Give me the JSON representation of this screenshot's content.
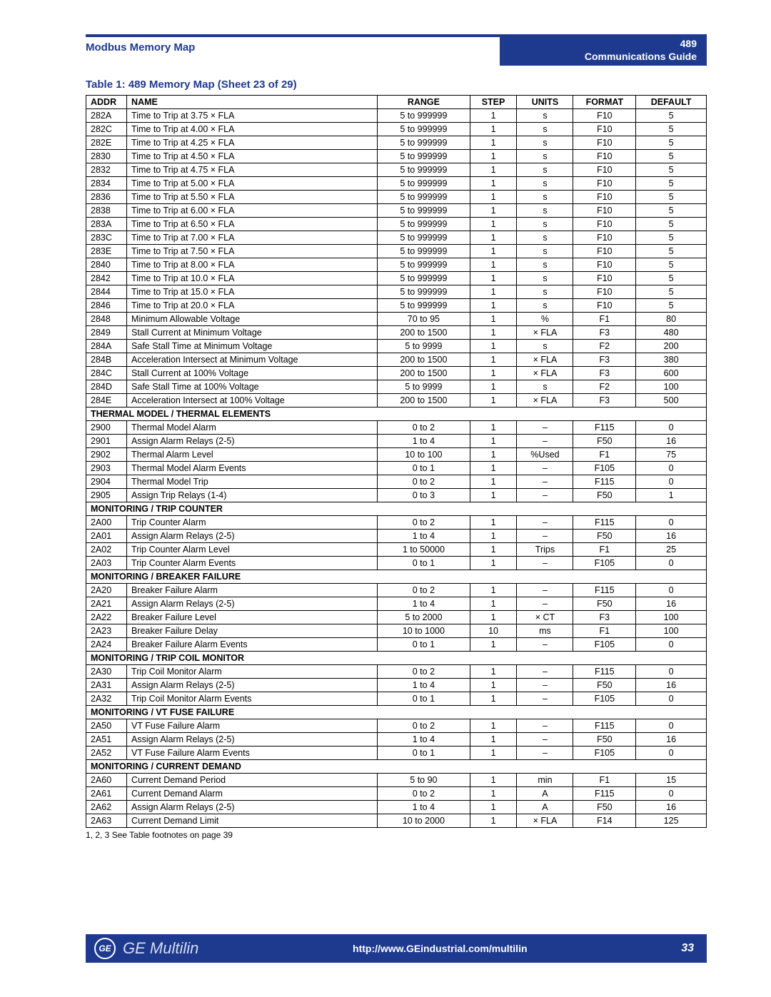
{
  "header": {
    "left": "Modbus Memory Map",
    "right_line1": "489",
    "right_line2": "Communications Guide"
  },
  "table_title": "Table 1: 489 Memory Map (Sheet 23 of 29)",
  "columns": [
    "ADDR",
    "NAME",
    "RANGE",
    "STEP",
    "UNITS",
    "FORMAT",
    "DEFAULT"
  ],
  "rows": [
    {
      "addr": "282A",
      "name": "Time to Trip at 3.75 × FLA",
      "range": "5 to 999999",
      "step": "1",
      "units": "s",
      "format": "F10",
      "default": "5"
    },
    {
      "addr": "282C",
      "name": "Time to Trip at 4.00 × FLA",
      "range": "5 to 999999",
      "step": "1",
      "units": "s",
      "format": "F10",
      "default": "5"
    },
    {
      "addr": "282E",
      "name": "Time to Trip at 4.25 × FLA",
      "range": "5 to 999999",
      "step": "1",
      "units": "s",
      "format": "F10",
      "default": "5"
    },
    {
      "addr": "2830",
      "name": "Time to Trip at 4.50 × FLA",
      "range": "5 to 999999",
      "step": "1",
      "units": "s",
      "format": "F10",
      "default": "5"
    },
    {
      "addr": "2832",
      "name": "Time to Trip at 4.75 × FLA",
      "range": "5 to 999999",
      "step": "1",
      "units": "s",
      "format": "F10",
      "default": "5"
    },
    {
      "addr": "2834",
      "name": "Time to Trip at 5.00 × FLA",
      "range": "5 to 999999",
      "step": "1",
      "units": "s",
      "format": "F10",
      "default": "5"
    },
    {
      "addr": "2836",
      "name": "Time to Trip at 5.50 × FLA",
      "range": "5 to 999999",
      "step": "1",
      "units": "s",
      "format": "F10",
      "default": "5"
    },
    {
      "addr": "2838",
      "name": "Time to Trip at 6.00 × FLA",
      "range": "5 to 999999",
      "step": "1",
      "units": "s",
      "format": "F10",
      "default": "5"
    },
    {
      "addr": "283A",
      "name": "Time to Trip at 6.50 × FLA",
      "range": "5 to 999999",
      "step": "1",
      "units": "s",
      "format": "F10",
      "default": "5"
    },
    {
      "addr": "283C",
      "name": "Time to Trip at 7.00 × FLA",
      "range": "5 to 999999",
      "step": "1",
      "units": "s",
      "format": "F10",
      "default": "5"
    },
    {
      "addr": "283E",
      "name": "Time to Trip at 7.50 × FLA",
      "range": "5 to 999999",
      "step": "1",
      "units": "s",
      "format": "F10",
      "default": "5"
    },
    {
      "addr": "2840",
      "name": "Time to Trip at 8.00 × FLA",
      "range": "5 to 999999",
      "step": "1",
      "units": "s",
      "format": "F10",
      "default": "5"
    },
    {
      "addr": "2842",
      "name": "Time to Trip at 10.0 × FLA",
      "range": "5 to 999999",
      "step": "1",
      "units": "s",
      "format": "F10",
      "default": "5"
    },
    {
      "addr": "2844",
      "name": "Time to Trip at 15.0 × FLA",
      "range": "5 to 999999",
      "step": "1",
      "units": "s",
      "format": "F10",
      "default": "5"
    },
    {
      "addr": "2846",
      "name": "Time to Trip at 20.0 × FLA",
      "range": "5 to 999999",
      "step": "1",
      "units": "s",
      "format": "F10",
      "default": "5"
    },
    {
      "addr": "2848",
      "name": "Minimum Allowable Voltage",
      "range": "70 to 95",
      "step": "1",
      "units": "%",
      "format": "F1",
      "default": "80"
    },
    {
      "addr": "2849",
      "name": "Stall Current at Minimum Voltage",
      "range": "200 to 1500",
      "step": "1",
      "units": "× FLA",
      "format": "F3",
      "default": "480"
    },
    {
      "addr": "284A",
      "name": "Safe Stall Time at Minimum Voltage",
      "range": "5 to 9999",
      "step": "1",
      "units": "s",
      "format": "F2",
      "default": "200"
    },
    {
      "addr": "284B",
      "name": "Acceleration Intersect at Minimum Voltage",
      "range": "200 to 1500",
      "step": "1",
      "units": "× FLA",
      "format": "F3",
      "default": "380"
    },
    {
      "addr": "284C",
      "name": "Stall Current at 100% Voltage",
      "range": "200 to 1500",
      "step": "1",
      "units": "× FLA",
      "format": "F3",
      "default": "600"
    },
    {
      "addr": "284D",
      "name": "Safe Stall Time at 100% Voltage",
      "range": "5 to 9999",
      "step": "1",
      "units": "s",
      "format": "F2",
      "default": "100"
    },
    {
      "addr": "284E",
      "name": "Acceleration Intersect at 100% Voltage",
      "range": "200 to 1500",
      "step": "1",
      "units": "× FLA",
      "format": "F3",
      "default": "500"
    },
    {
      "section": "THERMAL MODEL / THERMAL ELEMENTS"
    },
    {
      "addr": "2900",
      "name": "Thermal Model Alarm",
      "range": "0 to 2",
      "step": "1",
      "units": "–",
      "format": "F115",
      "default": "0"
    },
    {
      "addr": "2901",
      "name": "Assign Alarm Relays (2-5)",
      "range": "1 to 4",
      "step": "1",
      "units": "–",
      "format": "F50",
      "default": "16"
    },
    {
      "addr": "2902",
      "name": "Thermal Alarm Level",
      "range": "10 to 100",
      "step": "1",
      "units": "%Used",
      "format": "F1",
      "default": "75"
    },
    {
      "addr": "2903",
      "name": "Thermal Model Alarm Events",
      "range": "0 to 1",
      "step": "1",
      "units": "–",
      "format": "F105",
      "default": "0"
    },
    {
      "addr": "2904",
      "name": "Thermal Model Trip",
      "range": "0 to 2",
      "step": "1",
      "units": "–",
      "format": "F115",
      "default": "0"
    },
    {
      "addr": "2905",
      "name": "Assign Trip Relays (1-4)",
      "range": "0 to 3",
      "step": "1",
      "units": "–",
      "format": "F50",
      "default": "1"
    },
    {
      "section": "MONITORING / TRIP COUNTER"
    },
    {
      "addr": "2A00",
      "name": "Trip Counter Alarm",
      "range": "0 to 2",
      "step": "1",
      "units": "–",
      "format": "F115",
      "default": "0"
    },
    {
      "addr": "2A01",
      "name": "Assign Alarm Relays (2-5)",
      "range": "1 to 4",
      "step": "1",
      "units": "–",
      "format": "F50",
      "default": "16"
    },
    {
      "addr": "2A02",
      "name": "Trip Counter Alarm Level",
      "range": "1 to 50000",
      "step": "1",
      "units": "Trips",
      "format": "F1",
      "default": "25"
    },
    {
      "addr": "2A03",
      "name": "Trip Counter Alarm Events",
      "range": "0 to 1",
      "step": "1",
      "units": "–",
      "format": "F105",
      "default": "0"
    },
    {
      "section": "MONITORING / BREAKER FAILURE"
    },
    {
      "addr": "2A20",
      "name": "Breaker Failure Alarm",
      "range": "0 to 2",
      "step": "1",
      "units": "–",
      "format": "F115",
      "default": "0"
    },
    {
      "addr": "2A21",
      "name": "Assign Alarm Relays (2-5)",
      "range": "1 to 4",
      "step": "1",
      "units": "–",
      "format": "F50",
      "default": "16"
    },
    {
      "addr": "2A22",
      "name": "Breaker Failure Level",
      "range": "5 to 2000",
      "step": "1",
      "units": "× CT",
      "format": "F3",
      "default": "100"
    },
    {
      "addr": "2A23",
      "name": "Breaker Failure Delay",
      "range": "10 to 1000",
      "step": "10",
      "units": "ms",
      "format": "F1",
      "default": "100"
    },
    {
      "addr": "2A24",
      "name": "Breaker Failure Alarm Events",
      "range": "0 to 1",
      "step": "1",
      "units": "–",
      "format": "F105",
      "default": "0"
    },
    {
      "section": "MONITORING / TRIP COIL MONITOR"
    },
    {
      "addr": "2A30",
      "name": "Trip Coil Monitor Alarm",
      "range": "0 to 2",
      "step": "1",
      "units": "–",
      "format": "F115",
      "default": "0"
    },
    {
      "addr": "2A31",
      "name": "Assign Alarm Relays (2-5)",
      "range": "1 to 4",
      "step": "1",
      "units": "–",
      "format": "F50",
      "default": "16"
    },
    {
      "addr": "2A32",
      "name": "Trip Coil Monitor Alarm Events",
      "range": "0 to 1",
      "step": "1",
      "units": "–",
      "format": "F105",
      "default": "0"
    },
    {
      "section": "MONITORING / VT FUSE FAILURE"
    },
    {
      "addr": "2A50",
      "name": "VT Fuse Failure Alarm",
      "range": "0 to 2",
      "step": "1",
      "units": "–",
      "format": "F115",
      "default": "0"
    },
    {
      "addr": "2A51",
      "name": "Assign Alarm Relays (2-5)",
      "range": "1 to 4",
      "step": "1",
      "units": "–",
      "format": "F50",
      "default": "16"
    },
    {
      "addr": "2A52",
      "name": "VT Fuse Failure Alarm Events",
      "range": "0 to 1",
      "step": "1",
      "units": "–",
      "format": "F105",
      "default": "0"
    },
    {
      "section": "MONITORING / CURRENT DEMAND"
    },
    {
      "addr": "2A60",
      "name": "Current Demand Period",
      "range": "5 to 90",
      "step": "1",
      "units": "min",
      "format": "F1",
      "default": "15"
    },
    {
      "addr": "2A61",
      "name": "Current Demand Alarm",
      "range": "0 to 2",
      "step": "1",
      "units": "A",
      "format": "F115",
      "default": "0"
    },
    {
      "addr": "2A62",
      "name": "Assign Alarm Relays (2-5)",
      "range": "1 to 4",
      "step": "1",
      "units": "A",
      "format": "F50",
      "default": "16"
    },
    {
      "addr": "2A63",
      "name": "Current Demand Limit",
      "range": "10 to 2000",
      "step": "1",
      "units": "× FLA",
      "format": "F14",
      "default": "125"
    }
  ],
  "footnote": "1, 2, 3    See Table footnotes on page 39",
  "footer": {
    "monogram": "GE",
    "brand": "GE Multilin",
    "url": "http://www.GEindustrial.com/multilin",
    "page": "33"
  },
  "colors": {
    "primary": "#1e3a8e"
  }
}
